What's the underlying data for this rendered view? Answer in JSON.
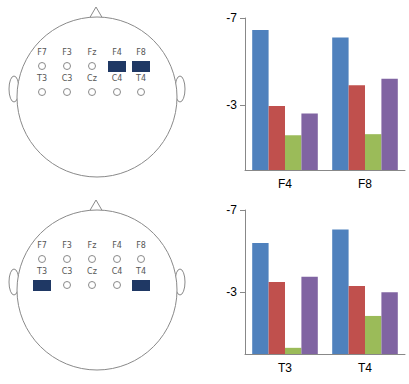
{
  "chart_data": [
    {
      "type": "bar",
      "categories": [
        "F4",
        "F8"
      ],
      "series": [
        {
          "color": "#4f81bd",
          "values": [
            -6.45,
            -6.1
          ]
        },
        {
          "color": "#c0504d",
          "values": [
            -2.95,
            -3.9
          ]
        },
        {
          "color": "#9bbb59",
          "values": [
            -1.6,
            -1.65
          ]
        },
        {
          "color": "#8064a2",
          "values": [
            -2.6,
            -4.2
          ]
        }
      ],
      "ylim": [
        -7,
        0
      ],
      "yticks": [
        -7,
        -3
      ],
      "grid": false
    },
    {
      "type": "bar",
      "categories": [
        "T3",
        "T4"
      ],
      "series": [
        {
          "color": "#4f81bd",
          "values": [
            -5.4,
            -6.05
          ]
        },
        {
          "color": "#c0504d",
          "values": [
            -3.5,
            -3.3
          ]
        },
        {
          "color": "#9bbb59",
          "values": [
            -0.3,
            -1.85
          ]
        },
        {
          "color": "#8064a2",
          "values": [
            -3.75,
            -3.0
          ]
        }
      ],
      "ylim": [
        -7,
        0
      ],
      "yticks": [
        -7,
        -3
      ],
      "grid": false
    }
  ],
  "head_maps": [
    {
      "electrodes": [
        [
          "F7",
          "F3",
          "Fz",
          "F4",
          "F8"
        ],
        [
          "T3",
          "C3",
          "Cz",
          "C4",
          "T4"
        ]
      ],
      "highlighted": [
        "F4",
        "F8"
      ]
    },
    {
      "electrodes": [
        [
          "F7",
          "F3",
          "Fz",
          "F4",
          "F8"
        ],
        [
          "T3",
          "C3",
          "Cz",
          "C4",
          "T4"
        ]
      ],
      "highlighted": [
        "T3",
        "T4"
      ]
    }
  ]
}
